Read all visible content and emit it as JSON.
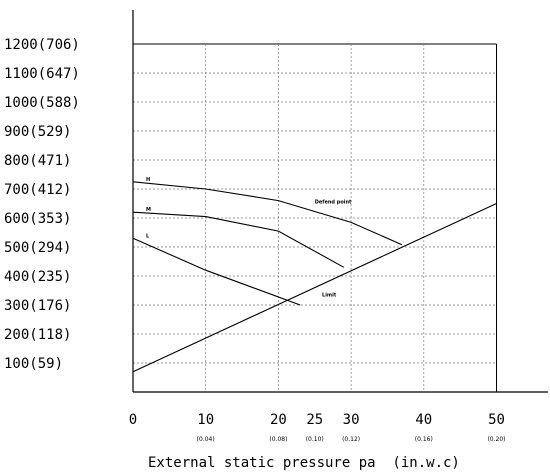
{
  "chart_data": {
    "type": "line",
    "x_axis": {
      "label": "External static pressure pa  (in.w.c)",
      "ticks": [
        0,
        10,
        20,
        25,
        30,
        40,
        50
      ],
      "sub_ticks": [
        {
          "x": 10,
          "label": "(0.04)"
        },
        {
          "x": 20,
          "label": "(0.08)"
        },
        {
          "x": 25,
          "label": "(0.10)"
        },
        {
          "x": 30,
          "label": "(0.12)"
        },
        {
          "x": 40,
          "label": "(0.16)"
        },
        {
          "x": 50,
          "label": "(0.20)"
        }
      ],
      "range": [
        0,
        50
      ]
    },
    "y_axis": {
      "tick_labels": [
        {
          "y": 100,
          "label": "100(59)"
        },
        {
          "y": 200,
          "label": "200(118)"
        },
        {
          "y": 300,
          "label": "300(176)"
        },
        {
          "y": 400,
          "label": "400(235)"
        },
        {
          "y": 500,
          "label": "500(294)"
        },
        {
          "y": 600,
          "label": "600(353)"
        },
        {
          "y": 700,
          "label": "700(412)"
        },
        {
          "y": 800,
          "label": "800(471)"
        },
        {
          "y": 900,
          "label": "900(529)"
        },
        {
          "y": 1000,
          "label": "1000(588)"
        },
        {
          "y": 1100,
          "label": "1100(647)"
        },
        {
          "y": 1200,
          "label": "1200(706)"
        }
      ],
      "range": [
        0,
        1200
      ]
    },
    "grid": true,
    "series": [
      {
        "name": "H",
        "points": [
          [
            0,
            725
          ],
          [
            10,
            700
          ],
          [
            20,
            660
          ],
          [
            30,
            585
          ],
          [
            37,
            508
          ]
        ]
      },
      {
        "name": "M",
        "points": [
          [
            0,
            620
          ],
          [
            10,
            605
          ],
          [
            20,
            555
          ],
          [
            29,
            430
          ]
        ]
      },
      {
        "name": "L",
        "points": [
          [
            0,
            530
          ],
          [
            10,
            420
          ],
          [
            23,
            300
          ]
        ]
      },
      {
        "name": "",
        "points": [
          [
            0,
            70
          ],
          [
            50,
            650
          ]
        ]
      }
    ],
    "annotations": [
      {
        "text": "Defend point",
        "x": 25,
        "y": 650
      },
      {
        "text": "Limit",
        "x": 26,
        "y": 330
      }
    ]
  }
}
